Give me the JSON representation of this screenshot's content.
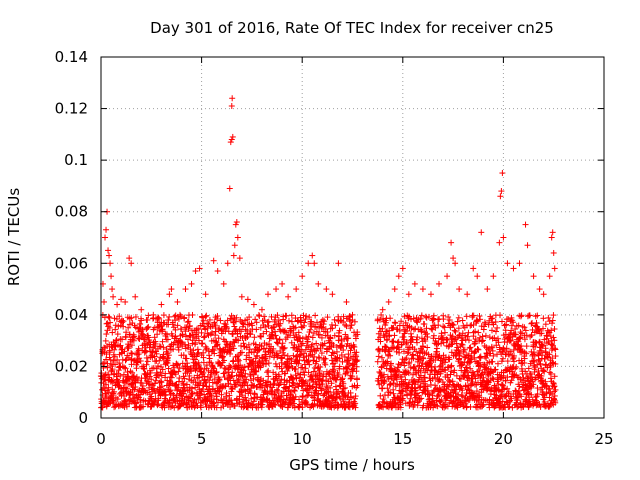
{
  "chart_data": {
    "type": "scatter",
    "title": "Day 301 of 2016, Rate Of TEC Index for receiver cn25",
    "xlabel": "GPS time / hours",
    "ylabel": "ROTI / TECUs",
    "xlim": [
      0,
      25
    ],
    "ylim": [
      0,
      0.14
    ],
    "x_ticks": [
      0,
      5,
      10,
      15,
      20,
      25
    ],
    "y_ticks": [
      0,
      0.02,
      0.04,
      0.06,
      0.08,
      0.1,
      0.12,
      0.14
    ],
    "x_tick_labels": [
      "0",
      "5",
      "10",
      "15",
      "20",
      "25"
    ],
    "y_tick_labels": [
      "0",
      "0.02",
      "0.04",
      "0.06",
      "0.08",
      "0.1",
      "0.12",
      "0.14"
    ],
    "grid": true,
    "marker": "+",
    "color": "#ff0000",
    "data_gap_hours": [
      12.75,
      13.75
    ],
    "series": [
      {
        "name": "ROTI",
        "points": [
          [
            0.1,
            0.052
          ],
          [
            0.15,
            0.045
          ],
          [
            0.2,
            0.07
          ],
          [
            0.25,
            0.073
          ],
          [
            0.3,
            0.08
          ],
          [
            0.35,
            0.065
          ],
          [
            0.4,
            0.063
          ],
          [
            0.45,
            0.06
          ],
          [
            0.5,
            0.055
          ],
          [
            0.55,
            0.05
          ],
          [
            0.6,
            0.047
          ],
          [
            0.8,
            0.044
          ],
          [
            1.0,
            0.046
          ],
          [
            1.2,
            0.045
          ],
          [
            1.4,
            0.062
          ],
          [
            1.5,
            0.06
          ],
          [
            1.7,
            0.047
          ],
          [
            2.0,
            0.042
          ],
          [
            2.3,
            0.038
          ],
          [
            2.6,
            0.04
          ],
          [
            3.0,
            0.044
          ],
          [
            3.4,
            0.048
          ],
          [
            3.5,
            0.05
          ],
          [
            3.8,
            0.045
          ],
          [
            4.2,
            0.05
          ],
          [
            4.5,
            0.052
          ],
          [
            4.7,
            0.057
          ],
          [
            4.9,
            0.058
          ],
          [
            5.2,
            0.048
          ],
          [
            5.6,
            0.061
          ],
          [
            5.8,
            0.057
          ],
          [
            6.1,
            0.052
          ],
          [
            6.3,
            0.06
          ],
          [
            6.4,
            0.089
          ],
          [
            6.45,
            0.107
          ],
          [
            6.5,
            0.108
          ],
          [
            6.5,
            0.121
          ],
          [
            6.52,
            0.124
          ],
          [
            6.55,
            0.109
          ],
          [
            6.6,
            0.063
          ],
          [
            6.65,
            0.067
          ],
          [
            6.7,
            0.075
          ],
          [
            6.75,
            0.076
          ],
          [
            6.8,
            0.07
          ],
          [
            6.9,
            0.062
          ],
          [
            7.0,
            0.047
          ],
          [
            7.3,
            0.046
          ],
          [
            7.6,
            0.044
          ],
          [
            8.0,
            0.042
          ],
          [
            8.3,
            0.048
          ],
          [
            8.7,
            0.05
          ],
          [
            9.0,
            0.052
          ],
          [
            9.3,
            0.047
          ],
          [
            9.7,
            0.05
          ],
          [
            10.0,
            0.055
          ],
          [
            10.3,
            0.06
          ],
          [
            10.5,
            0.063
          ],
          [
            10.6,
            0.06
          ],
          [
            10.8,
            0.052
          ],
          [
            11.2,
            0.05
          ],
          [
            11.5,
            0.048
          ],
          [
            11.8,
            0.06
          ],
          [
            12.2,
            0.045
          ],
          [
            12.5,
            0.04
          ],
          [
            14.0,
            0.042
          ],
          [
            14.3,
            0.045
          ],
          [
            14.6,
            0.05
          ],
          [
            14.8,
            0.055
          ],
          [
            15.0,
            0.058
          ],
          [
            15.3,
            0.048
          ],
          [
            15.6,
            0.052
          ],
          [
            16.0,
            0.05
          ],
          [
            16.4,
            0.048
          ],
          [
            16.8,
            0.052
          ],
          [
            17.2,
            0.055
          ],
          [
            17.4,
            0.068
          ],
          [
            17.5,
            0.062
          ],
          [
            17.6,
            0.06
          ],
          [
            17.8,
            0.05
          ],
          [
            18.2,
            0.048
          ],
          [
            18.5,
            0.058
          ],
          [
            18.7,
            0.055
          ],
          [
            18.9,
            0.072
          ],
          [
            19.2,
            0.05
          ],
          [
            19.5,
            0.055
          ],
          [
            19.8,
            0.068
          ],
          [
            19.85,
            0.086
          ],
          [
            19.9,
            0.088
          ],
          [
            19.95,
            0.095
          ],
          [
            20.0,
            0.07
          ],
          [
            20.2,
            0.06
          ],
          [
            20.5,
            0.058
          ],
          [
            20.8,
            0.06
          ],
          [
            21.1,
            0.075
          ],
          [
            21.2,
            0.067
          ],
          [
            21.5,
            0.055
          ],
          [
            21.8,
            0.05
          ],
          [
            22.0,
            0.048
          ],
          [
            22.3,
            0.055
          ],
          [
            22.4,
            0.07
          ],
          [
            22.45,
            0.072
          ],
          [
            22.5,
            0.064
          ],
          [
            22.55,
            0.058
          ]
        ],
        "dense_band_segments": [
          {
            "x_range": [
              0.0,
              12.75
            ],
            "y_low": 0.004,
            "y_high": 0.04
          },
          {
            "x_range": [
              13.75,
              22.6
            ],
            "y_low": 0.004,
            "y_high": 0.04
          }
        ]
      }
    ]
  }
}
